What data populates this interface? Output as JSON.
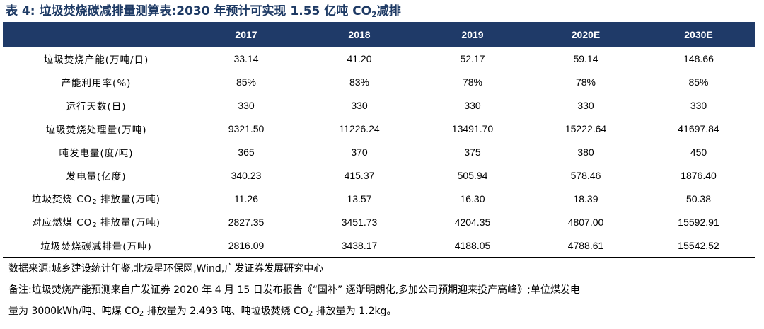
{
  "title": {
    "prefix": "表 4:  垃圾焚烧碳减排量测算表:2030 年预计可实现 1.55 亿吨 CO",
    "sub": "2",
    "suffix": "减排"
  },
  "chart_data": {
    "type": "table",
    "columns": [
      "",
      "2017",
      "2018",
      "2019",
      "2020E",
      "2030E"
    ],
    "rows": [
      {
        "label": "垃圾焚烧产能(万吨/日)",
        "values": [
          "33.14",
          "41.20",
          "52.17",
          "59.14",
          "148.66"
        ]
      },
      {
        "label": "产能利用率(%)",
        "values": [
          "85%",
          "83%",
          "78%",
          "78%",
          "85%"
        ]
      },
      {
        "label": "运行天数(日)",
        "values": [
          "330",
          "330",
          "330",
          "330",
          "330"
        ]
      },
      {
        "label": "垃圾焚烧处理量(万吨)",
        "values": [
          "9321.50",
          "11226.24",
          "13491.70",
          "15222.64",
          "41697.84"
        ]
      },
      {
        "label": "吨发电量(度/吨)",
        "values": [
          "365",
          "370",
          "375",
          "380",
          "450"
        ]
      },
      {
        "label": "发电量(亿度)",
        "values": [
          "340.23",
          "415.37",
          "505.94",
          "578.46",
          "1876.40"
        ]
      },
      {
        "label": "垃圾焚烧 CO2 排放量(万吨)",
        "label_parts": [
          "垃圾焚烧 CO",
          "2",
          " 排放量(万吨)"
        ],
        "values": [
          "11.26",
          "13.57",
          "16.30",
          "18.39",
          "50.38"
        ]
      },
      {
        "label": "对应燃煤 CO2 排放量(万吨)",
        "label_parts": [
          "对应燃煤 CO",
          "2",
          " 排放量(万吨)"
        ],
        "values": [
          "2827.35",
          "3451.73",
          "4204.35",
          "4807.00",
          "15592.91"
        ]
      },
      {
        "label": "垃圾焚烧碳减排量(万吨)",
        "values": [
          "2816.09",
          "3438.17",
          "4188.05",
          "4788.61",
          "15542.52"
        ]
      }
    ]
  },
  "source": "数据来源:城乡建设统计年鉴,北极星环保网,Wind,广发证券发展研究中心",
  "note": {
    "line1": "备注:垃圾焚烧产能预测来自广发证券 2020 年 4 月 15 日发布报告《“国补” 逐渐明朗化,多加公司预期迎来投产高峰》;单位煤发电",
    "line2_a": "量为 3000kWh/吨、吨煤 CO",
    "line2_sub1": "2",
    "line2_b": " 排放量为 2.493 吨、吨垃圾焚烧 CO",
    "line2_sub2": "2",
    "line2_c": " 排放量为 1.2kg。"
  }
}
